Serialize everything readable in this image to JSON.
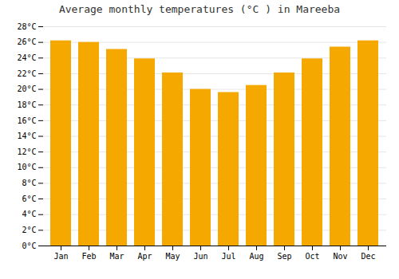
{
  "chart_data": {
    "type": "bar",
    "title": "Average monthly temperatures (°C ) in Mareeba",
    "categories": [
      "Jan",
      "Feb",
      "Mar",
      "Apr",
      "May",
      "Jun",
      "Jul",
      "Aug",
      "Sep",
      "Oct",
      "Nov",
      "Dec"
    ],
    "values": [
      26.2,
      26.0,
      25.1,
      23.9,
      22.1,
      20.0,
      19.6,
      20.5,
      22.1,
      23.9,
      25.4,
      26.2
    ],
    "color": "#F5A800",
    "ylim": [
      0,
      28
    ],
    "yticks": [
      {
        "value": 0,
        "label": "0°C"
      },
      {
        "value": 2,
        "label": "2°C"
      },
      {
        "value": 4,
        "label": "4°C"
      },
      {
        "value": 6,
        "label": "6°C"
      },
      {
        "value": 8,
        "label": "8°C"
      },
      {
        "value": 10,
        "label": "10°C"
      },
      {
        "value": 12,
        "label": "12°C"
      },
      {
        "value": 14,
        "label": "14°C"
      },
      {
        "value": 16,
        "label": "16°C"
      },
      {
        "value": 18,
        "label": "18°C"
      },
      {
        "value": 20,
        "label": "20°C"
      },
      {
        "value": 22,
        "label": "22°C"
      },
      {
        "value": 24,
        "label": "24°C"
      },
      {
        "value": 26,
        "label": "26°C"
      },
      {
        "value": 28,
        "label": "28°C"
      }
    ],
    "grid": true
  }
}
